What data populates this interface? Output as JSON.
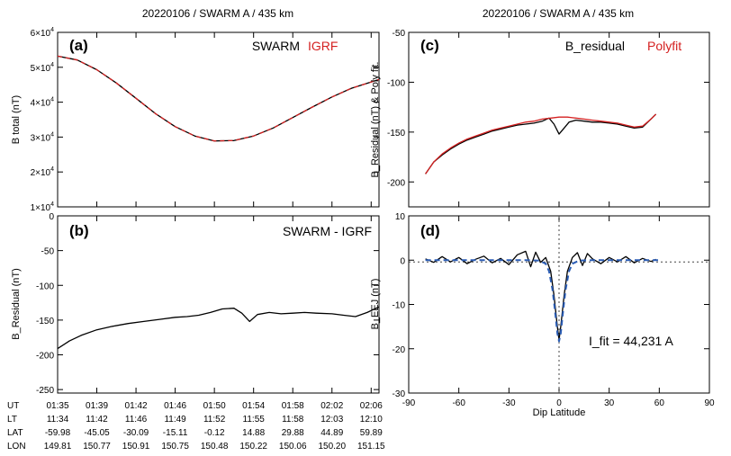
{
  "colors": {
    "black": "#000000",
    "red": "#d42020",
    "blue": "#2b5db5",
    "dotted": "#444444"
  },
  "chart_data": [
    {
      "id": "a",
      "type": "line",
      "title": "20220106 / SWARM A / 435 km",
      "panel_label": "(a)",
      "ylabel": "B total (nT)",
      "legend": [
        "SWARM",
        "IGRF"
      ],
      "legend_placement": "top-right",
      "ylim": [
        10000,
        60000
      ],
      "y_ticks": [
        {
          "value": 10000,
          "base": "1×10",
          "exp": "4"
        },
        {
          "value": 20000,
          "base": "2×10",
          "exp": "4"
        },
        {
          "value": 30000,
          "base": "3×10",
          "exp": "4"
        },
        {
          "value": 40000,
          "base": "4×10",
          "exp": "4"
        },
        {
          "value": 50000,
          "base": "5×10",
          "exp": "4"
        },
        {
          "value": 60000,
          "base": "6×10",
          "exp": "4"
        }
      ],
      "x_index_range": [
        0,
        8.2
      ],
      "series": [
        {
          "name": "SWARM",
          "color": "black",
          "dash": false,
          "x": [
            0,
            0.5,
            1,
            1.5,
            2,
            2.5,
            3,
            3.5,
            4,
            4.5,
            5,
            5.5,
            6,
            6.5,
            7,
            7.5,
            8.2
          ],
          "values": [
            53200,
            52100,
            49300,
            45500,
            41100,
            36700,
            33000,
            30300,
            28900,
            29000,
            30300,
            32600,
            35600,
            38600,
            41500,
            44000,
            46500
          ]
        },
        {
          "name": "IGRF",
          "color": "red",
          "dash": true,
          "x": [
            0,
            0.5,
            1,
            1.5,
            2,
            2.5,
            3,
            3.5,
            4,
            4.5,
            5,
            5.5,
            6,
            6.5,
            7,
            7.5,
            8.2
          ],
          "values": [
            53200,
            52100,
            49300,
            45500,
            41100,
            36700,
            33000,
            30300,
            28900,
            29000,
            30300,
            32600,
            35600,
            38600,
            41500,
            44000,
            46500
          ]
        }
      ]
    },
    {
      "id": "b",
      "type": "line",
      "panel_label": "(b)",
      "ylabel": "B_Residual (nT)",
      "legend": [
        "SWARM - IGRF"
      ],
      "legend_placement": "top-right",
      "ylim": [
        -255,
        0
      ],
      "y_ticks": [
        {
          "value": -250,
          "base": "-250"
        },
        {
          "value": -200,
          "base": "-200"
        },
        {
          "value": -150,
          "base": "-150"
        },
        {
          "value": -100,
          "base": "-100"
        },
        {
          "value": -50,
          "base": "-50"
        },
        {
          "value": 0,
          "base": "0"
        }
      ],
      "x_index_range": [
        0,
        8.2
      ],
      "x_axis_table": {
        "rows": [
          "UT",
          "LT",
          "LAT",
          "LON"
        ],
        "columns": [
          [
            "01:35",
            "11:34",
            "-59.98",
            "149.81"
          ],
          [
            "01:39",
            "11:42",
            "-45.05",
            "150.77"
          ],
          [
            "01:42",
            "11:46",
            "-30.09",
            "150.91"
          ],
          [
            "01:46",
            "11:49",
            "-15.11",
            "150.75"
          ],
          [
            "01:50",
            "11:52",
            "-0.12",
            "150.48"
          ],
          [
            "01:54",
            "11:55",
            "14.88",
            "150.22"
          ],
          [
            "01:58",
            "11:58",
            "29.88",
            "150.06"
          ],
          [
            "02:02",
            "12:03",
            "44.89",
            "150.20"
          ],
          [
            "02:06",
            "12:10",
            "59.89",
            "151.15"
          ]
        ]
      },
      "series": [
        {
          "color": "black",
          "dash": false,
          "x": [
            0,
            0.3,
            0.6,
            1,
            1.4,
            1.8,
            2.2,
            2.6,
            3,
            3.3,
            3.6,
            3.9,
            4.2,
            4.5,
            4.7,
            4.9,
            5.1,
            5.4,
            5.7,
            6,
            6.3,
            6.6,
            7,
            7.3,
            7.6,
            7.9,
            8.2
          ],
          "values": [
            -191,
            -180,
            -172,
            -164,
            -159,
            -155,
            -152,
            -149,
            -146,
            -145,
            -143,
            -139,
            -134,
            -133,
            -140,
            -152,
            -142,
            -139,
            -141,
            -140,
            -139,
            -140,
            -141,
            -143,
            -145,
            -139,
            -131
          ]
        }
      ]
    },
    {
      "id": "c",
      "type": "line",
      "title": "20220106 / SWARM A / 435 km",
      "panel_label": "(c)",
      "ylabel": "B_Residual (nT) & Poly fit.",
      "legend": [
        "B_residual",
        "Polyfit"
      ],
      "legend_placement": "top-right",
      "xlim": [
        -90,
        90
      ],
      "ylim": [
        -225,
        -50
      ],
      "y_ticks": [
        {
          "value": -200,
          "base": "-200"
        },
        {
          "value": -150,
          "base": "-150"
        },
        {
          "value": -100,
          "base": "-100"
        },
        {
          "value": -50,
          "base": "-50"
        }
      ],
      "series": [
        {
          "name": "B_residual",
          "color": "black",
          "dash": false,
          "x": [
            -80,
            -75,
            -70,
            -65,
            -60,
            -55,
            -50,
            -45,
            -40,
            -35,
            -30,
            -25,
            -20,
            -15,
            -10,
            -6,
            -3,
            0,
            3,
            6,
            10,
            15,
            20,
            25,
            30,
            35,
            40,
            45,
            50,
            55,
            58
          ],
          "values": [
            -192,
            -180,
            -173,
            -167,
            -162,
            -158,
            -155,
            -152,
            -149,
            -147,
            -145,
            -143,
            -142,
            -141,
            -139,
            -136,
            -142,
            -152,
            -146,
            -140,
            -138,
            -139,
            -140,
            -140,
            -141,
            -142,
            -144,
            -146,
            -145,
            -137,
            -132
          ]
        },
        {
          "name": "Polyfit",
          "color": "red",
          "dash": false,
          "x": [
            -80,
            -75,
            -70,
            -65,
            -60,
            -55,
            -50,
            -45,
            -40,
            -35,
            -30,
            -25,
            -20,
            -15,
            -10,
            -5,
            0,
            5,
            10,
            15,
            20,
            25,
            30,
            35,
            40,
            45,
            50,
            55,
            58
          ],
          "values": [
            -192,
            -180,
            -172,
            -166,
            -161,
            -157,
            -154,
            -151,
            -148,
            -146,
            -144,
            -142,
            -140,
            -139,
            -137,
            -136,
            -135,
            -135,
            -136,
            -137,
            -138,
            -139,
            -140,
            -141,
            -143,
            -145,
            -144,
            -137,
            -132
          ]
        }
      ]
    },
    {
      "id": "d",
      "type": "line",
      "panel_label": "(d)",
      "ylabel": "B_EEJ  (nT)",
      "xlabel": "Dip Latitude",
      "annotation": "I_fit = 44,231 A",
      "xlim": [
        -90,
        90
      ],
      "ylim": [
        -30,
        10
      ],
      "x_ticks": [
        -90,
        -60,
        -30,
        0,
        30,
        60,
        90
      ],
      "y_ticks": [
        {
          "value": -30,
          "base": "-30"
        },
        {
          "value": -20,
          "base": "-20"
        },
        {
          "value": -10,
          "base": "-10"
        },
        {
          "value": 0,
          "base": "0"
        },
        {
          "value": 10,
          "base": "10"
        }
      ],
      "series": [
        {
          "color": "black",
          "dash": false,
          "x": [
            -80,
            -75,
            -70,
            -65,
            -60,
            -55,
            -50,
            -45,
            -40,
            -35,
            -30,
            -25,
            -20,
            -17,
            -14,
            -11,
            -8,
            -5,
            -3,
            -1,
            0,
            1,
            3,
            5,
            8,
            11,
            14,
            17,
            20,
            25,
            30,
            35,
            40,
            45,
            50,
            55,
            58
          ],
          "values": [
            0.3,
            -0.5,
            0.8,
            -0.4,
            0.6,
            -0.8,
            0.2,
            0.9,
            -0.6,
            0.4,
            -1.0,
            1.2,
            2.0,
            -1.5,
            1.8,
            -0.5,
            0.6,
            -2.5,
            -8,
            -15,
            -18,
            -15,
            -8,
            -2.5,
            0.6,
            1.7,
            -1.2,
            1.5,
            0.3,
            -0.8,
            0.6,
            -0.4,
            0.8,
            -0.6,
            0.4,
            -0.3,
            0.2
          ]
        },
        {
          "color": "blue",
          "dash": true,
          "x": [
            -80,
            -60,
            -40,
            -20,
            -12,
            -8,
            -6,
            -4,
            -3,
            -2,
            -1,
            0,
            1,
            2,
            3,
            4,
            6,
            8,
            12,
            20,
            40,
            60
          ],
          "values": [
            0,
            0,
            0,
            0,
            -0.1,
            -0.8,
            -2.5,
            -6.5,
            -9.5,
            -13,
            -16.5,
            -18.3,
            -16.5,
            -13,
            -9.5,
            -6.5,
            -2.5,
            -0.8,
            -0.1,
            0,
            0,
            0
          ]
        }
      ]
    }
  ]
}
